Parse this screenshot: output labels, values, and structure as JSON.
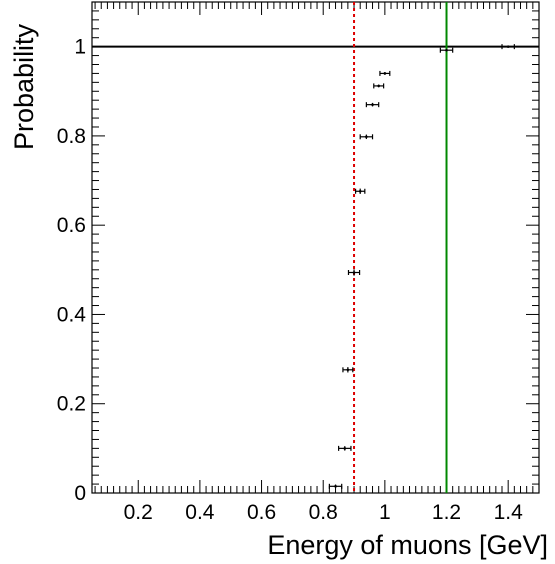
{
  "chart_data": {
    "type": "scatter",
    "xlabel": "Energy of muons [GeV]",
    "ylabel": "Probability",
    "xlim": [
      0.05,
      1.5
    ],
    "ylim": [
      0,
      1.1
    ],
    "x_ticks": [
      0.2,
      0.4,
      0.6,
      0.8,
      1,
      1.2,
      1.4
    ],
    "x_tick_labels": [
      "0.2",
      "0.4",
      "0.6",
      "0.8",
      "1",
      "1.2",
      "1.4"
    ],
    "y_ticks": [
      0,
      0.2,
      0.4,
      0.6,
      0.8,
      1
    ],
    "y_tick_labels": [
      "0",
      "0.2",
      "0.4",
      "0.6",
      "0.8",
      "1"
    ],
    "grid": false,
    "reference_lines": [
      {
        "orientation": "horizontal",
        "value": 1.0,
        "color": "#000000",
        "style": "solid"
      },
      {
        "orientation": "vertical",
        "value": 0.9,
        "color": "#dd0000",
        "style": "dotted"
      },
      {
        "orientation": "vertical",
        "value": 1.2,
        "color": "#008800",
        "style": "solid"
      }
    ],
    "series": [
      {
        "color": "#000000",
        "points": [
          {
            "x": 0.84,
            "y": 0.015,
            "xerr": 0.02,
            "yerr": 0.004
          },
          {
            "x": 0.87,
            "y": 0.1,
            "xerr": 0.02,
            "yerr": 0.005
          },
          {
            "x": 0.88,
            "y": 0.276,
            "xerr": 0.016,
            "yerr": 0.006
          },
          {
            "x": 0.9,
            "y": 0.494,
            "xerr": 0.018,
            "yerr": 0.007
          },
          {
            "x": 0.92,
            "y": 0.676,
            "xerr": 0.015,
            "yerr": 0.006
          },
          {
            "x": 0.94,
            "y": 0.798,
            "xerr": 0.02,
            "yerr": 0.005
          },
          {
            "x": 0.96,
            "y": 0.87,
            "xerr": 0.02,
            "yerr": 0.004
          },
          {
            "x": 0.98,
            "y": 0.912,
            "xerr": 0.016,
            "yerr": 0.003
          },
          {
            "x": 1.0,
            "y": 0.94,
            "xerr": 0.016,
            "yerr": 0.003
          },
          {
            "x": 1.2,
            "y": 0.992,
            "xerr": 0.02,
            "yerr": 0.002
          },
          {
            "x": 1.4,
            "y": 1.0,
            "xerr": 0.02,
            "yerr": 0.001
          }
        ]
      }
    ]
  }
}
